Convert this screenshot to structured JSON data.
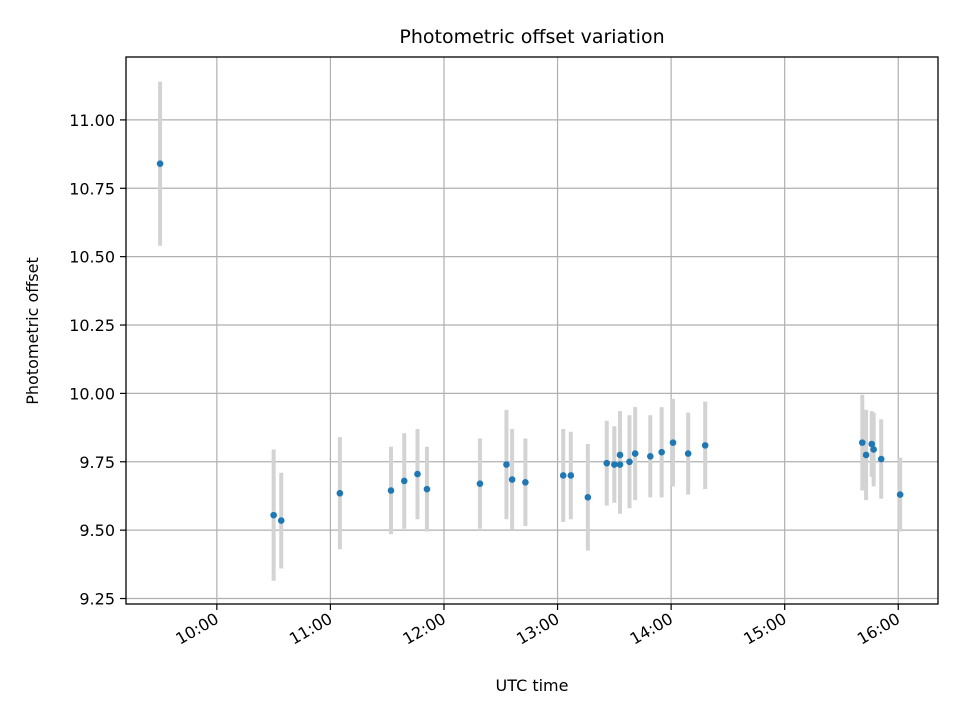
{
  "chart_data": {
    "type": "scatter",
    "title": "Photometric offset variation",
    "xlabel": "UTC time",
    "ylabel": "Photometric offset",
    "x_ticks": [
      "10:00",
      "11:00",
      "12:00",
      "13:00",
      "14:00",
      "15:00",
      "16:00"
    ],
    "y_ticks": [
      "9.25",
      "9.50",
      "9.75",
      "10.00",
      "10.25",
      "10.50",
      "10.75",
      "11.00"
    ],
    "xlim": [
      "09:12",
      "16:21"
    ],
    "ylim": [
      9.23,
      11.23
    ],
    "grid": true,
    "colors": {
      "point": "#1f77b4",
      "errorbar": "#d3d3d3",
      "grid": "#b0b0b0"
    },
    "series": [
      {
        "points": [
          {
            "x": "09:30",
            "y": 10.84,
            "err": 0.3
          },
          {
            "x": "10:30",
            "y": 9.555,
            "err": 0.24
          },
          {
            "x": "10:34",
            "y": 9.535,
            "err": 0.175
          },
          {
            "x": "11:05",
            "y": 9.635,
            "err": 0.205
          },
          {
            "x": "11:32",
            "y": 9.645,
            "err": 0.16
          },
          {
            "x": "11:39",
            "y": 9.68,
            "err": 0.175
          },
          {
            "x": "11:46",
            "y": 9.705,
            "err": 0.165
          },
          {
            "x": "11:51",
            "y": 9.65,
            "err": 0.155
          },
          {
            "x": "12:19",
            "y": 9.67,
            "err": 0.165
          },
          {
            "x": "12:33",
            "y": 9.74,
            "err": 0.2
          },
          {
            "x": "12:36",
            "y": 9.685,
            "err": 0.185
          },
          {
            "x": "12:43",
            "y": 9.675,
            "err": 0.16
          },
          {
            "x": "13:03",
            "y": 9.7,
            "err": 0.17
          },
          {
            "x": "13:07",
            "y": 9.7,
            "err": 0.16
          },
          {
            "x": "13:16",
            "y": 9.62,
            "err": 0.195
          },
          {
            "x": "13:26",
            "y": 9.745,
            "err": 0.155
          },
          {
            "x": "13:30",
            "y": 9.74,
            "err": 0.14
          },
          {
            "x": "13:33",
            "y": 9.775,
            "err": 0.16
          },
          {
            "x": "13:33",
            "y": 9.74,
            "err": 0.18
          },
          {
            "x": "13:38",
            "y": 9.75,
            "err": 0.17
          },
          {
            "x": "13:41",
            "y": 9.78,
            "err": 0.17
          },
          {
            "x": "13:49",
            "y": 9.77,
            "err": 0.15
          },
          {
            "x": "13:55",
            "y": 9.785,
            "err": 0.165
          },
          {
            "x": "14:01",
            "y": 9.82,
            "err": 0.16
          },
          {
            "x": "14:09",
            "y": 9.78,
            "err": 0.15
          },
          {
            "x": "14:18",
            "y": 9.81,
            "err": 0.16
          },
          {
            "x": "15:41",
            "y": 9.82,
            "err": 0.175
          },
          {
            "x": "15:43",
            "y": 9.775,
            "err": 0.165
          },
          {
            "x": "15:46",
            "y": 9.815,
            "err": 0.12
          },
          {
            "x": "15:47",
            "y": 9.795,
            "err": 0.135
          },
          {
            "x": "15:51",
            "y": 9.76,
            "err": 0.145
          },
          {
            "x": "16:01",
            "y": 9.63,
            "err": 0.135
          }
        ]
      }
    ]
  }
}
